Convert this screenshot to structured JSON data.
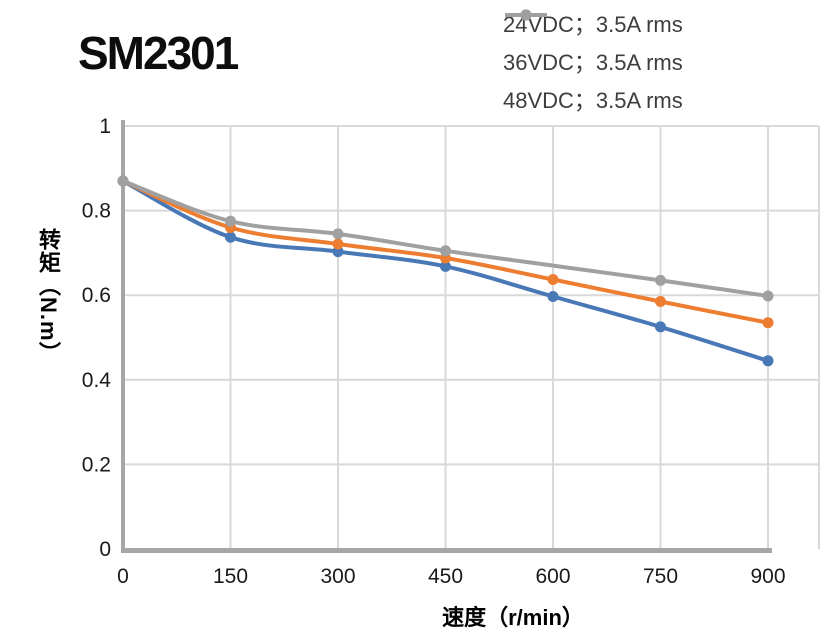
{
  "title": "SM2301",
  "colors": {
    "grid": "#d9d9d9",
    "axis": "#a6a6a6",
    "tick_text": "#1a1a1a",
    "legend_text": "#3d3d3d",
    "series_24vdc": "#4879b6",
    "series_36vdc": "#ed7d31",
    "series_48vdc": "#a0a0a0"
  },
  "chart_data": {
    "type": "line",
    "title": "SM2301",
    "smooth": true,
    "marker": "circle",
    "grid": true,
    "legend_position": "top-right",
    "xlabel": "速度（r/min）",
    "ylabel": "转矩（N.m）",
    "xlim": [
      0,
      900
    ],
    "ylim": [
      0,
      1
    ],
    "xticks": [
      0,
      150,
      300,
      450,
      600,
      750,
      900
    ],
    "yticks": [
      0,
      0.2,
      0.4,
      0.6,
      0.8,
      1
    ],
    "x": [
      0,
      150,
      300,
      450,
      600,
      750,
      900
    ],
    "series": [
      {
        "name": "24VDC；3.5A rms",
        "color": "#4879b6",
        "values": [
          0.87,
          0.737,
          0.703,
          0.668,
          0.597,
          0.525,
          0.445
        ]
      },
      {
        "name": "36VDC；3.5A rms",
        "color": "#ed7d31",
        "values": [
          0.87,
          0.76,
          0.721,
          0.688,
          0.637,
          0.585,
          0.535
        ]
      },
      {
        "name": "48VDC；3.5A rms",
        "color": "#a0a0a0",
        "values": [
          0.87,
          0.775,
          0.745,
          0.705,
          0.67,
          0.635,
          0.598
        ],
        "marker_skip_x": [
          600
        ]
      }
    ]
  }
}
